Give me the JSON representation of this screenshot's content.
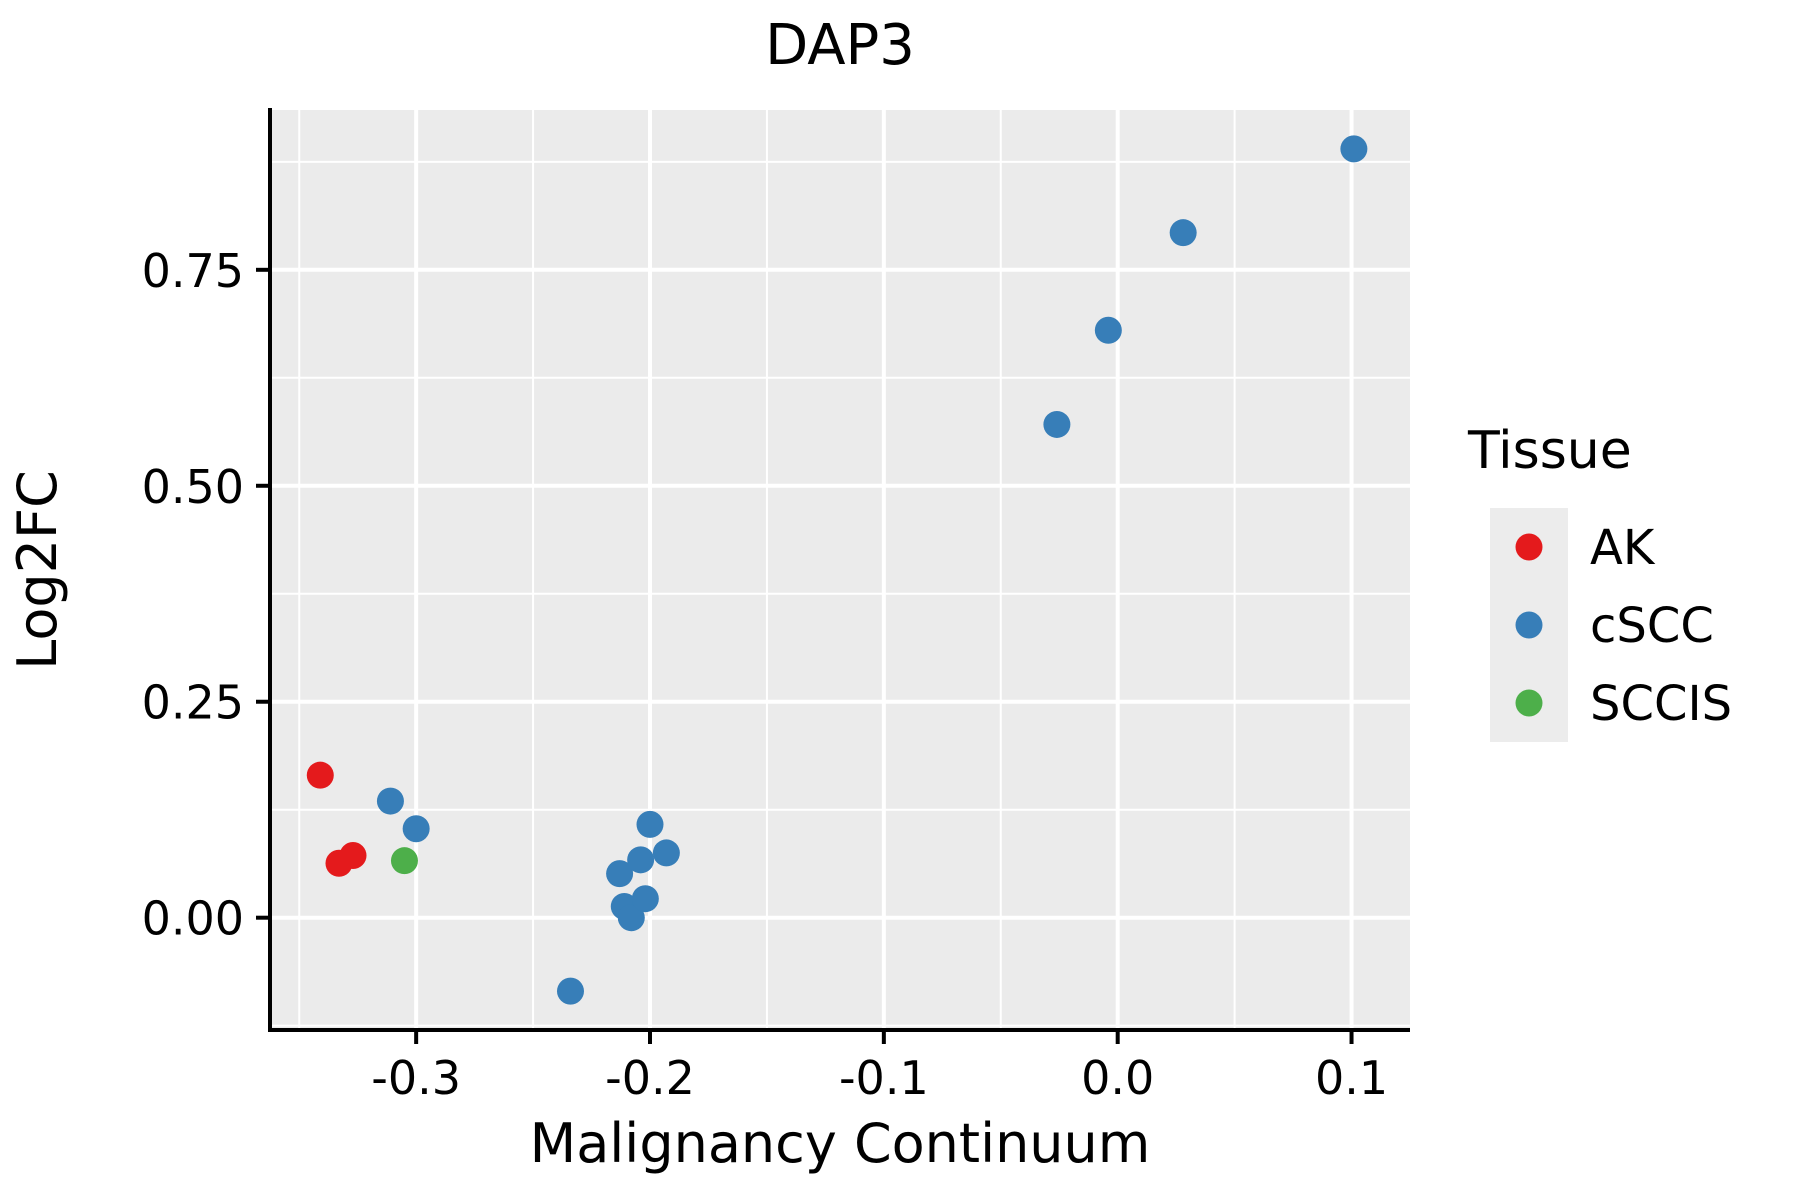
{
  "chart_data": {
    "type": "scatter",
    "title": "DAP3",
    "xlabel": "Malignancy Continuum",
    "ylabel": "Log2FC",
    "legend_title": "Tissue",
    "xlim": [
      -0.3625,
      0.125
    ],
    "ylim": [
      -0.13,
      0.935
    ],
    "x_tick_values": [
      -0.3,
      -0.2,
      -0.1,
      0.0,
      0.1
    ],
    "x_tick_labels": [
      "-0.3",
      "-0.2",
      "-0.1",
      "0.0",
      "0.1"
    ],
    "x_minor_ticks": [
      -0.35,
      -0.25,
      -0.15,
      -0.05,
      0.05
    ],
    "y_tick_values": [
      0.0,
      0.25,
      0.5,
      0.75
    ],
    "y_tick_labels": [
      "0.00",
      "0.25",
      "0.50",
      "0.75"
    ],
    "y_minor_ticks": [
      -0.125,
      0.125,
      0.375,
      0.625,
      0.875
    ],
    "panel_background": "#EBEBEB",
    "grid_color": "#FFFFFF",
    "axis_color": "#000000",
    "legend_key_fill": "#ECECEC",
    "point_radius": 13.5,
    "series": [
      {
        "name": "AK",
        "color": "#E41A1C",
        "points": [
          [
            -0.341,
            0.165
          ],
          [
            -0.333,
            0.063
          ],
          [
            -0.327,
            0.072
          ]
        ]
      },
      {
        "name": "cSCC",
        "color": "#377EB8",
        "points": [
          [
            -0.311,
            0.135
          ],
          [
            -0.3,
            0.103
          ],
          [
            -0.234,
            -0.085
          ],
          [
            -0.213,
            0.051
          ],
          [
            -0.211,
            0.013
          ],
          [
            -0.208,
            0.0
          ],
          [
            -0.204,
            0.067
          ],
          [
            -0.202,
            0.022
          ],
          [
            -0.2,
            0.108
          ],
          [
            -0.193,
            0.075
          ],
          [
            -0.026,
            0.571
          ],
          [
            -0.004,
            0.68
          ],
          [
            0.028,
            0.793
          ],
          [
            0.101,
            0.89
          ]
        ]
      },
      {
        "name": "SCCIS",
        "color": "#4DAF4A",
        "points": [
          [
            -0.305,
            0.066
          ]
        ]
      }
    ]
  }
}
